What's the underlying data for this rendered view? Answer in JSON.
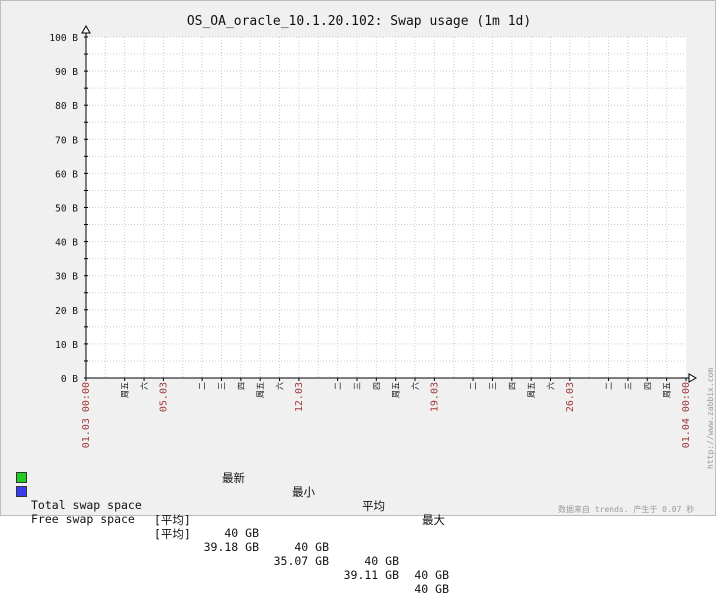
{
  "graph": {
    "title": "OS_OA_oracle_10.1.20.102: Swap usage (1m 1d)",
    "side_url": "http://www.zabbix.com",
    "footer_note": "数据来自 trends. 产生于 0.07 秒"
  },
  "chart_data": {
    "type": "line",
    "title": "OS_OA_oracle_10.1.20.102: Swap usage (1m 1d)",
    "ylim": [
      0,
      100
    ],
    "y_ticks": [
      "0 B",
      "10 B",
      "20 B",
      "30 B",
      "40 B",
      "50 B",
      "60 B",
      "70 B",
      "80 B",
      "90 B",
      "100 B"
    ],
    "x_range": [
      "01.03 00:00",
      "01.04 00:00"
    ],
    "x_labels": [
      {
        "text": "01.03 00:00",
        "day": 0,
        "kind": "edge"
      },
      {
        "text": "周五",
        "day": 2,
        "kind": "weekday"
      },
      {
        "text": "六",
        "day": 3,
        "kind": "weekday"
      },
      {
        "text": "05.03",
        "day": 4,
        "kind": "date"
      },
      {
        "text": "二",
        "day": 6,
        "kind": "weekday"
      },
      {
        "text": "三",
        "day": 7,
        "kind": "weekday"
      },
      {
        "text": "四",
        "day": 8,
        "kind": "weekday"
      },
      {
        "text": "周五",
        "day": 9,
        "kind": "weekday"
      },
      {
        "text": "六",
        "day": 10,
        "kind": "weekday"
      },
      {
        "text": "12.03",
        "day": 11,
        "kind": "date"
      },
      {
        "text": "二",
        "day": 13,
        "kind": "weekday"
      },
      {
        "text": "三",
        "day": 14,
        "kind": "weekday"
      },
      {
        "text": "四",
        "day": 15,
        "kind": "weekday"
      },
      {
        "text": "周五",
        "day": 16,
        "kind": "weekday"
      },
      {
        "text": "六",
        "day": 17,
        "kind": "weekday"
      },
      {
        "text": "19.03",
        "day": 18,
        "kind": "date"
      },
      {
        "text": "二",
        "day": 20,
        "kind": "weekday"
      },
      {
        "text": "三",
        "day": 21,
        "kind": "weekday"
      },
      {
        "text": "四",
        "day": 22,
        "kind": "weekday"
      },
      {
        "text": "周五",
        "day": 23,
        "kind": "weekday"
      },
      {
        "text": "六",
        "day": 24,
        "kind": "weekday"
      },
      {
        "text": "26.03",
        "day": 25,
        "kind": "date"
      },
      {
        "text": "二",
        "day": 27,
        "kind": "weekday"
      },
      {
        "text": "三",
        "day": 28,
        "kind": "weekday"
      },
      {
        "text": "四",
        "day": 29,
        "kind": "weekday"
      },
      {
        "text": "周五",
        "day": 30,
        "kind": "weekday"
      },
      {
        "text": "01.04 00:00",
        "day": 31,
        "kind": "edge"
      }
    ],
    "colors": {
      "date_label": "#a33a3a",
      "axis": "#000000",
      "grid": "#cccccc",
      "plot_bg": "#ffffff",
      "chart_bg": "#f0f0f0"
    },
    "series": [
      {
        "name": "Total swap space",
        "color": "#22cc22",
        "values": []
      },
      {
        "name": "Free swap space",
        "color": "#3a3aee",
        "values": []
      }
    ],
    "grid": true
  },
  "legend": {
    "headers": {
      "last": "最新",
      "min": "最小",
      "avg": "平均",
      "max": "最大"
    },
    "rows": [
      {
        "name": "Total swap space",
        "color": "#22cc22",
        "func": "[平均]",
        "last": "40 GB",
        "min": "40 GB",
        "avg": "40 GB",
        "max": "40 GB"
      },
      {
        "name": "Free swap space",
        "color": "#3a3aee",
        "func": "[平均]",
        "last": "39.18 GB",
        "min": "35.07 GB",
        "avg": "39.11 GB",
        "max": "40 GB"
      }
    ]
  }
}
